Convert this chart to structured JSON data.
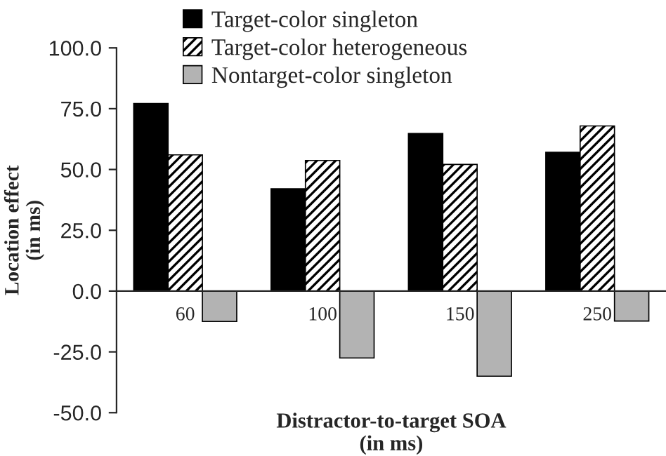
{
  "chart_data": {
    "type": "bar",
    "categories": [
      "60",
      "100",
      "150",
      "250"
    ],
    "series": [
      {
        "name": "Target-color singleton",
        "color": "#000000",
        "values": [
          77.1,
          42.1,
          64.8,
          57.1
        ]
      },
      {
        "name": "Target-color heterogeneous",
        "color": "#000000",
        "values": [
          56.0,
          53.7,
          52.1,
          67.9
        ]
      },
      {
        "name": "Nontarget-color singleton",
        "color": "#b3b3b3",
        "values": [
          -12.5,
          -27.5,
          -35.0,
          -12.3
        ]
      }
    ],
    "xlabel": "Distractor-to-target SOA\n(in ms)",
    "ylabel": "Location effect\n(in ms)",
    "ylim": [
      -50,
      100
    ],
    "yticks": [
      {
        "value": -50,
        "label": "-50.0"
      },
      {
        "value": -25,
        "label": "-25.0"
      },
      {
        "value": 0,
        "label": "0.0"
      },
      {
        "value": 25,
        "label": "25.0"
      },
      {
        "value": 50,
        "label": "50.0"
      },
      {
        "value": 75,
        "label": "75.0"
      },
      {
        "value": 100,
        "label": "100.0"
      }
    ],
    "legend": "top",
    "grid": false
  }
}
